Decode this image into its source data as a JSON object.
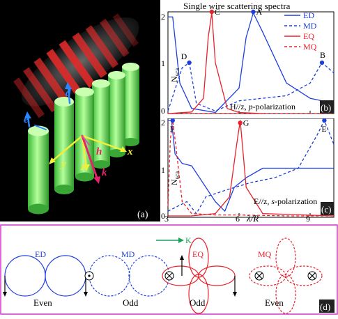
{
  "figure": {
    "spectra_title": "Single wire scattering spectra",
    "panel_labels": {
      "a": "(a)",
      "b": "(b)",
      "c": "(c)",
      "d": "(d)"
    },
    "colors": {
      "electric": "#1f3fdc",
      "magnetic_red": "#e8202a",
      "wire_green": "#7cf06a",
      "frame_magenta": "#d236c8",
      "axes_arrow_yellow": "#f0ef3a",
      "k_arrow": "#e4236b",
      "d_arrow": "#2a86ff",
      "hz_arrow": "#d05a9a",
      "k_vector_green": "#1aa35a"
    }
  },
  "panel_a": {
    "axis_letters": {
      "x": "x",
      "y": "y",
      "z": "z",
      "k": "k",
      "d": "d",
      "h": "h",
      "e": "e"
    },
    "wire_count": 6
  },
  "panel_b": {
    "ylabel": "N",
    "ylabel_sub": "sca",
    "polarization_text_prefix": "H//z, ",
    "polarization_text_italic": "p",
    "polarization_text_suffix": "-polarization",
    "point_labels": {
      "A": "A",
      "B": "B",
      "C": "C",
      "D": "D"
    },
    "yticks": [
      "2",
      "1",
      "0"
    ]
  },
  "panel_c": {
    "ylabel": "N",
    "ylabel_sub": "sca",
    "polarization_text_prefix": "E//z, ",
    "polarization_text_italic": "s",
    "polarization_text_suffix": "-polarization",
    "point_labels": {
      "E": "E",
      "F": "F",
      "G": "G"
    },
    "yticks": [
      "2",
      "1",
      "0"
    ],
    "xticks": [
      "3",
      "6",
      "9"
    ],
    "xlabel": "λ/R"
  },
  "legend": [
    {
      "name": "ED",
      "style": "solid",
      "color": "#1f3fdc"
    },
    {
      "name": "MD",
      "style": "dashed",
      "color": "#1f3fdc"
    },
    {
      "name": "EQ",
      "style": "solid",
      "color": "#e8202a"
    },
    {
      "name": "MQ",
      "style": "dashed",
      "color": "#e8202a"
    }
  ],
  "panel_d": {
    "k_label": "K",
    "patterns": [
      {
        "name": "ED",
        "parity": "Even"
      },
      {
        "name": "MD",
        "parity": "Odd"
      },
      {
        "name": "EQ",
        "parity": "Odd"
      },
      {
        "name": "MQ",
        "parity": "Even"
      }
    ]
  },
  "chart_data": [
    {
      "type": "line",
      "title": "Single wire scattering spectra",
      "ylabel": "N_sca",
      "ylim": [
        0,
        2
      ],
      "xlim": [
        3,
        10
      ],
      "series": [
        {
          "name": "ED",
          "x": [
            3.0,
            3.2,
            3.5,
            4.0,
            5.0,
            6.0,
            6.3,
            6.6,
            7.0,
            8.0,
            9.0,
            10.0
          ],
          "y": [
            1.9,
            1.9,
            0.6,
            0.1,
            0.02,
            0.5,
            1.5,
            1.98,
            1.6,
            0.6,
            0.3,
            0.2
          ]
        },
        {
          "name": "MD",
          "x": [
            3.0,
            3.6,
            3.9,
            4.2,
            5.0,
            6.0,
            7.0,
            8.0,
            9.0,
            9.5,
            10.0
          ],
          "y": [
            0.05,
            0.9,
            1.0,
            0.2,
            0.05,
            0.25,
            0.3,
            0.35,
            0.6,
            1.0,
            0.8
          ]
        },
        {
          "name": "EQ",
          "x": [
            3.0,
            4.0,
            4.5,
            4.7,
            4.85,
            5.0,
            5.5,
            6.0,
            7.0
          ],
          "y": [
            0.0,
            0.03,
            0.3,
            1.5,
            1.98,
            1.0,
            0.1,
            0.02,
            0.0
          ]
        },
        {
          "name": "MQ",
          "x": [
            3.0,
            4.0,
            5.0,
            6.0,
            8.0,
            10.0
          ],
          "y": [
            0,
            0,
            0,
            0,
            0,
            0
          ]
        }
      ],
      "points": [
        {
          "label": "A",
          "x": 6.6,
          "y": 2.0
        },
        {
          "label": "B",
          "x": 9.5,
          "y": 1.0
        },
        {
          "label": "C",
          "x": 4.85,
          "y": 2.0
        },
        {
          "label": "D",
          "x": 3.9,
          "y": 1.0
        }
      ],
      "annotation": "H//z, p-polarization"
    },
    {
      "type": "line",
      "xlabel": "λ/R",
      "ylabel": "N_sca",
      "xticks": [
        3,
        6,
        9
      ],
      "ylim": [
        0,
        2
      ],
      "xlim": [
        3,
        10
      ],
      "series": [
        {
          "name": "ED",
          "x": [
            3.0,
            3.15,
            3.3,
            3.6,
            4.0,
            5.0,
            5.4,
            5.8,
            6.3,
            7.0,
            8.0,
            9.0,
            10.0
          ],
          "y": [
            2.0,
            2.0,
            1.3,
            1.1,
            1.05,
            0.3,
            0.1,
            0.6,
            0.8,
            1.0,
            1.0,
            1.0,
            1.0
          ]
        },
        {
          "name": "MD",
          "x": [
            3.0,
            3.8,
            4.2,
            4.6,
            5.5,
            6.5,
            7.5,
            8.5,
            9.3,
            9.6,
            10.0
          ],
          "y": [
            0.1,
            0.3,
            0.05,
            0.4,
            0.55,
            0.7,
            0.8,
            1.0,
            1.7,
            2.0,
            1.5
          ]
        },
        {
          "name": "EQ",
          "x": [
            3.0,
            4.0,
            5.0,
            5.6,
            5.9,
            6.05,
            6.3,
            7.0,
            10.0
          ],
          "y": [
            0.0,
            0.0,
            0.05,
            0.4,
            1.5,
            2.0,
            0.6,
            0.05,
            0.0
          ]
        },
        {
          "name": "MQ",
          "x": [
            3.0,
            3.1,
            3.2,
            3.35,
            3.6,
            4.0,
            5.0,
            6.0,
            8.0,
            10.0
          ],
          "y": [
            0.2,
            1.6,
            2.0,
            1.4,
            0.3,
            0.05,
            0.02,
            0.02,
            0.0,
            0.0
          ]
        }
      ],
      "points": [
        {
          "label": "E",
          "x": 9.6,
          "y": 2.0
        },
        {
          "label": "F",
          "x": 3.2,
          "y": 2.0
        },
        {
          "label": "G",
          "x": 6.05,
          "y": 1.95
        }
      ],
      "annotation": "E//z, s-polarization"
    }
  ]
}
